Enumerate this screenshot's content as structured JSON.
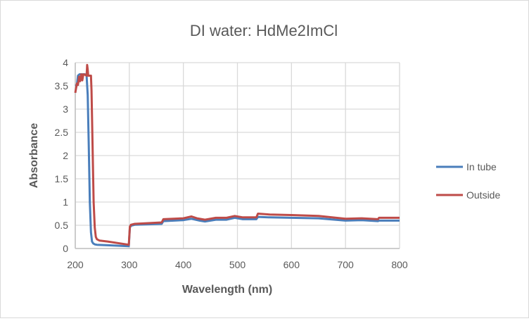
{
  "chart_data": {
    "type": "line",
    "title": "DI water: HdMe2ImCl",
    "xlabel": "Wavelength (nm)",
    "ylabel": "Absorbance",
    "xlim": [
      200,
      800
    ],
    "ylim": [
      0,
      4
    ],
    "xticks": [
      200,
      300,
      400,
      500,
      600,
      700,
      800
    ],
    "yticks": [
      0,
      0.5,
      1,
      1.5,
      2,
      2.5,
      3,
      3.5,
      4
    ],
    "grid": true,
    "legend": "right",
    "series": [
      {
        "name": "In tube",
        "color": "#4a7ebb",
        "x": [
          200,
          203,
          205,
          208,
          212,
          215,
          218,
          221,
          223,
          225,
          227,
          229,
          231,
          233,
          236,
          240,
          260,
          299,
          301,
          303,
          310,
          360,
          363,
          400,
          415,
          430,
          440,
          460,
          480,
          495,
          510,
          535,
          538,
          560,
          600,
          650,
          700,
          730,
          760,
          762,
          800
        ],
        "y": [
          3.5,
          3.52,
          3.72,
          3.75,
          3.75,
          3.75,
          3.75,
          3.72,
          3.3,
          2.2,
          1.0,
          0.35,
          0.15,
          0.11,
          0.09,
          0.08,
          0.07,
          0.05,
          0.45,
          0.49,
          0.51,
          0.53,
          0.59,
          0.61,
          0.64,
          0.6,
          0.58,
          0.62,
          0.62,
          0.66,
          0.63,
          0.63,
          0.68,
          0.67,
          0.66,
          0.65,
          0.6,
          0.61,
          0.59,
          0.6,
          0.6
        ]
      },
      {
        "name": "Outside",
        "color": "#be4b48",
        "x": [
          200,
          203,
          205,
          207,
          209,
          211,
          213,
          215,
          218,
          221,
          222,
          223,
          224,
          226,
          229,
          230,
          232,
          234,
          236,
          238,
          240,
          245,
          260,
          299,
          301,
          303,
          310,
          360,
          363,
          400,
          415,
          425,
          440,
          460,
          480,
          495,
          510,
          535,
          538,
          560,
          600,
          650,
          700,
          730,
          760,
          762,
          800
        ],
        "y": [
          3.35,
          3.55,
          3.52,
          3.7,
          3.6,
          3.75,
          3.62,
          3.75,
          3.74,
          3.72,
          3.95,
          3.85,
          3.72,
          3.72,
          3.72,
          3.4,
          2.2,
          1.0,
          0.45,
          0.25,
          0.2,
          0.17,
          0.15,
          0.08,
          0.47,
          0.51,
          0.53,
          0.56,
          0.63,
          0.65,
          0.69,
          0.65,
          0.62,
          0.66,
          0.66,
          0.7,
          0.67,
          0.67,
          0.75,
          0.73,
          0.72,
          0.7,
          0.64,
          0.65,
          0.63,
          0.66,
          0.66
        ]
      }
    ]
  }
}
